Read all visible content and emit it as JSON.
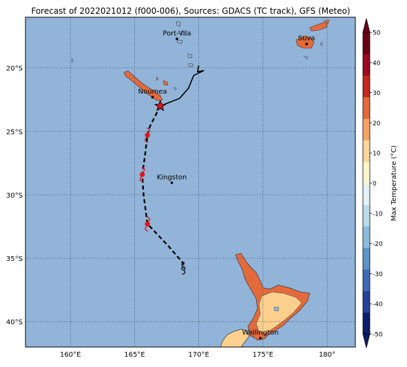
{
  "title": "Forecast of 2022021012 (f000-006), Sources: GDACS (TC track), GFS (Meteo)",
  "lon_labels": [
    "160°E",
    "165°E",
    "170°E",
    "175°E",
    "180°"
  ],
  "lat_labels": [
    "20°S",
    "25°S",
    "30°S",
    "35°S",
    "40°S"
  ],
  "lon_values": [
    160,
    165,
    170,
    175,
    180
  ],
  "lat_values": [
    -20,
    -25,
    -30,
    -35,
    -40
  ],
  "map_extent": {
    "lon": [
      156.5,
      182.2
    ],
    "lat": [
      -42,
      -16
    ]
  },
  "cities": [
    {
      "name": "Port-Vila",
      "lon": 168.3,
      "lat": -17.7
    },
    {
      "name": "Suva",
      "lon": 178.4,
      "lat": -18.1
    },
    {
      "name": "Noumea",
      "lon": 166.4,
      "lat": -22.3
    },
    {
      "name": "Kingston",
      "lon": 167.9,
      "lat": -29.05
    },
    {
      "name": "Wellington",
      "lon": 174.8,
      "lat": -41.3
    }
  ],
  "track": {
    "observed": [
      [
        170.0,
        -19.8
      ],
      [
        169.9,
        -20.3
      ],
      [
        170.4,
        -20.2
      ],
      [
        169.6,
        -20.6
      ],
      [
        169.2,
        -21.6
      ],
      [
        168.5,
        -22.4
      ],
      [
        167.0,
        -23.0
      ]
    ],
    "forecast": [
      [
        167.0,
        -23.0
      ],
      [
        166.2,
        -24.6
      ],
      [
        166.0,
        -25.3
      ],
      [
        165.8,
        -27.0
      ],
      [
        165.6,
        -28.4
      ],
      [
        165.7,
        -30.0
      ],
      [
        166.0,
        -32.3
      ],
      [
        167.6,
        -34.0
      ],
      [
        168.8,
        -35.4
      ],
      [
        168.8,
        -35.8
      ]
    ],
    "current_position": [
      167.0,
      -23.0
    ],
    "storm_symbols": [
      [
        166.0,
        -25.3
      ],
      [
        165.6,
        -28.4
      ],
      [
        166.0,
        -32.3
      ]
    ],
    "low_symbol": [
      168.8,
      -35.8
    ]
  },
  "colorbar": {
    "label": "Max Temperature (°C)",
    "ticks": [
      50,
      40,
      30,
      20,
      10,
      0,
      -10,
      -20,
      -30,
      -40,
      -50
    ],
    "min": -50,
    "max": 50,
    "colors": [
      "#0c1d6b",
      "#24429a",
      "#3c6cb5",
      "#5d95c8",
      "#8cbcdb",
      "#bcdcea",
      "#e4f2f7",
      "#fdf5cc",
      "#fdd89a",
      "#f5a463",
      "#e46a3c",
      "#c6281f",
      "#9b0a1e",
      "#6a0016"
    ]
  },
  "colors": {
    "ocean": "#92b4d8",
    "land_warm": "#f5a463",
    "land_warmer": "#e46a3c",
    "land_mild": "#fdd08d",
    "track": "#000000",
    "storm_symbol": "#e0141b"
  }
}
